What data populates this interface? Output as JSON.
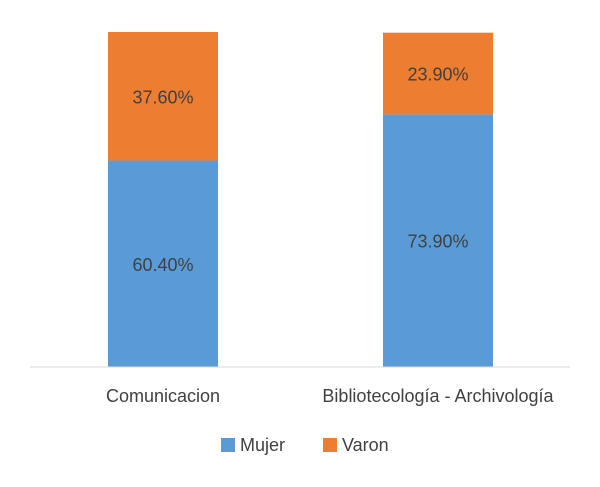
{
  "chart_data": {
    "type": "bar",
    "stacked": true,
    "categories": [
      "Comunicacion",
      "Bibliotecología - Archivología"
    ],
    "series": [
      {
        "name": "Mujer",
        "color": "#5B9BD5",
        "values": [
          60.4,
          73.9
        ],
        "labels": [
          "60.40%",
          "73.90%"
        ]
      },
      {
        "name": "Varon",
        "color": "#ED7D31",
        "values": [
          37.6,
          23.9
        ],
        "labels": [
          "37.60%",
          "23.90%"
        ]
      }
    ],
    "ylim": [
      0,
      98
    ],
    "grid": false,
    "legend": "bottom",
    "title": "",
    "xlabel": "",
    "ylabel": ""
  }
}
